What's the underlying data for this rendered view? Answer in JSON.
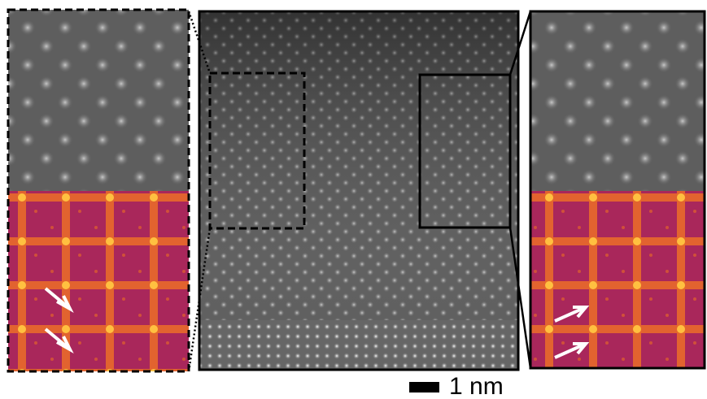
{
  "scale_bar": {
    "label": "1 nm"
  }
}
